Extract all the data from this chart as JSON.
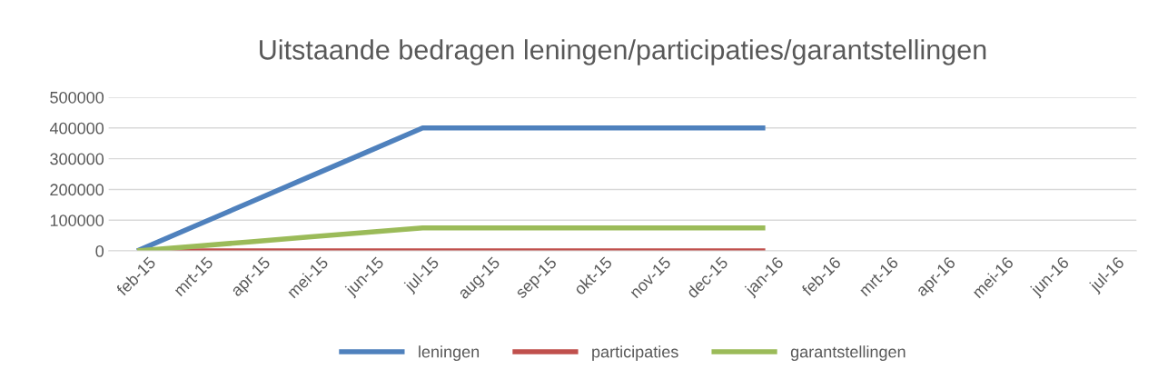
{
  "chart_data": {
    "type": "line",
    "title": "Uitstaande bedragen leningen/participaties/garantstellingen",
    "categories": [
      "feb-15",
      "mrt-15",
      "apr-15",
      "mei-15",
      "jun-15",
      "jul-15",
      "aug-15",
      "sep-15",
      "okt-15",
      "nov-15",
      "dec-15",
      "jan-16",
      "feb-16",
      "mrt-16",
      "apr-16",
      "mei-16",
      "jun-16",
      "jul-16"
    ],
    "series": [
      {
        "name": "leningen",
        "color": "#4f81bd",
        "values": [
          0,
          80000,
          160000,
          240000,
          320000,
          400000,
          400000,
          400000,
          400000,
          400000,
          400000,
          400000,
          null,
          null,
          null,
          null,
          null,
          null
        ]
      },
      {
        "name": "participaties",
        "color": "#c0504d",
        "values": [
          0,
          0,
          0,
          0,
          0,
          0,
          0,
          0,
          0,
          0,
          0,
          0,
          null,
          null,
          null,
          null,
          null,
          null
        ]
      },
      {
        "name": "garantstellingen",
        "color": "#9bbb59",
        "values": [
          0,
          15000,
          30000,
          45000,
          60000,
          75000,
          75000,
          75000,
          75000,
          75000,
          75000,
          75000,
          null,
          null,
          null,
          null,
          null,
          null
        ]
      }
    ],
    "ylim": [
      0,
      500000
    ],
    "yticks": [
      0,
      100000,
      200000,
      300000,
      400000,
      500000
    ],
    "grid": "y",
    "legend": "bottom",
    "marker": "none",
    "line_style": "solid"
  }
}
